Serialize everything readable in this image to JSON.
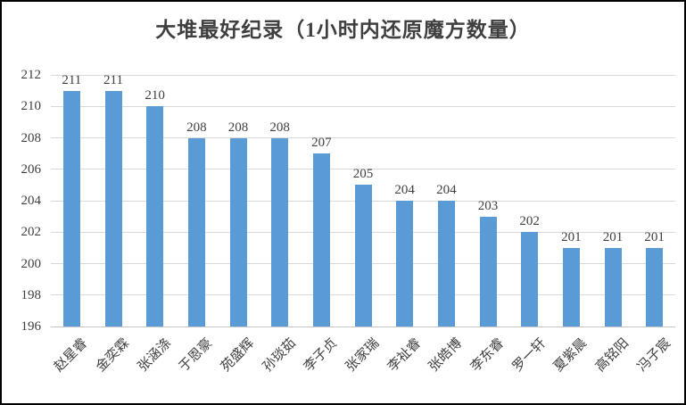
{
  "chart_data": {
    "type": "bar",
    "title": "大堆最好纪录（1小时内还原魔方数量）",
    "categories": [
      "赵星睿",
      "金奕霖",
      "张涵涤",
      "于恩豪",
      "苑盛辉",
      "孙琰茹",
      "李子贞",
      "张家瑞",
      "李祉睿",
      "张皓博",
      "李东睿",
      "罗一轩",
      "夏紫晨",
      "高铭阳",
      "冯子宸"
    ],
    "values": [
      211,
      211,
      210,
      208,
      208,
      208,
      207,
      205,
      204,
      204,
      203,
      202,
      201,
      201,
      201
    ],
    "data_labels": [
      211,
      211,
      210,
      208,
      208,
      208,
      207,
      205,
      204,
      204,
      203,
      202,
      201,
      201,
      201
    ],
    "xlabel": "",
    "ylabel": "",
    "ylim": [
      196,
      212
    ],
    "yticks": [
      196,
      198,
      200,
      202,
      204,
      206,
      208,
      210,
      212
    ],
    "grid": true,
    "legend_position": "none",
    "x_label_rotation_deg": 45,
    "colors": {
      "bar": "#5b9bd5",
      "gridline": "#d9d9d9",
      "labels": "#404040",
      "title": "#3f3f3f",
      "background": "#ffffff",
      "border": "#000000"
    }
  }
}
